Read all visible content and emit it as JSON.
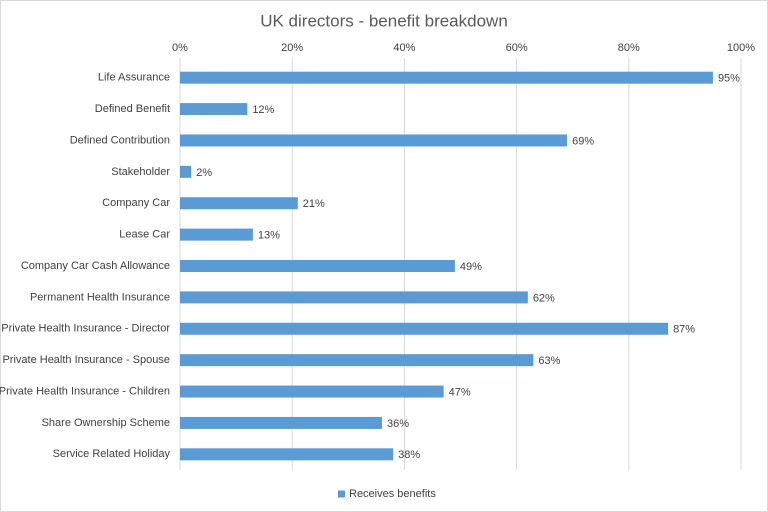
{
  "chart_data": {
    "type": "barh",
    "title": "UK directors - benefit breakdown",
    "categories": [
      "Life Assurance",
      "Defined Benefit",
      "Defined Contribution",
      "Stakeholder",
      "Company Car",
      "Lease Car",
      "Company Car Cash Allowance",
      "Permanent Health Insurance",
      "Private Health Insurance - Director",
      "Private Health Insurance - Spouse",
      "Private Health Insurance - Children",
      "Share Ownership Scheme",
      "Service Related Holiday"
    ],
    "series": [
      {
        "name": "Receives benefits",
        "color": "#5b9bd5",
        "values": [
          95,
          12,
          69,
          2,
          21,
          13,
          49,
          62,
          87,
          63,
          47,
          36,
          38
        ],
        "value_labels": [
          "95%",
          "12%",
          "69%",
          "2%",
          "21%",
          "13%",
          "49%",
          "62%",
          "87%",
          "63%",
          "47%",
          "36%",
          "38%"
        ]
      }
    ],
    "xlim": [
      0,
      100
    ],
    "xticks": [
      {
        "value": 0,
        "label": "0%"
      },
      {
        "value": 20,
        "label": "20%"
      },
      {
        "value": 40,
        "label": "40%"
      },
      {
        "value": 60,
        "label": "60%"
      },
      {
        "value": 80,
        "label": "80%"
      },
      {
        "value": 100,
        "label": "100%"
      }
    ],
    "grid": true,
    "legend": "bottom"
  }
}
